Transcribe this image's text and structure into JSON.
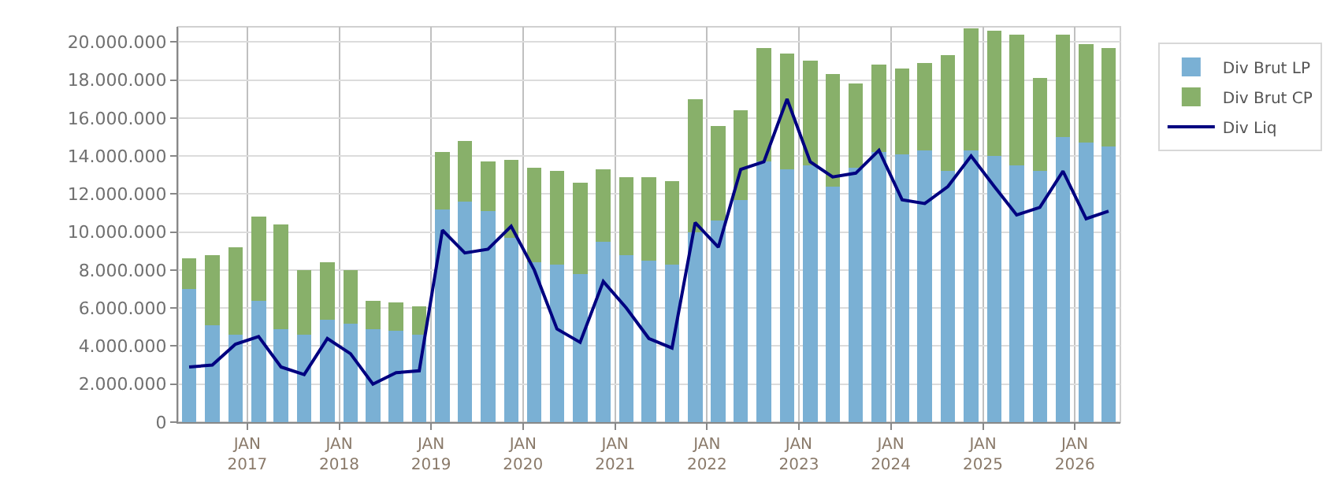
{
  "chart_data": {
    "type": "bar",
    "stacked": true,
    "x": [
      "2016-05-15",
      "2016-08-15",
      "2016-11-15",
      "2017-02-15",
      "2017-05-15",
      "2017-08-15",
      "2017-11-15",
      "2018-02-15",
      "2018-05-15",
      "2018-08-15",
      "2018-11-15",
      "2019-02-15",
      "2019-05-15",
      "2019-08-15",
      "2019-11-15",
      "2020-02-15",
      "2020-05-15",
      "2020-08-15",
      "2020-11-15",
      "2021-02-15",
      "2021-05-15",
      "2021-08-15",
      "2021-11-15",
      "2022-02-15",
      "2022-05-15",
      "2022-08-15",
      "2022-11-15",
      "2023-02-15",
      "2023-05-15",
      "2023-08-15",
      "2023-11-15",
      "2024-02-15",
      "2024-05-15",
      "2024-08-15",
      "2024-11-15",
      "2025-02-15",
      "2025-05-15",
      "2025-08-15",
      "2025-11-15",
      "2026-02-15",
      "2026-05-15"
    ],
    "series": [
      {
        "name": "Div Brut LP",
        "color": "#7ab0d4",
        "values": [
          7000000,
          5100000,
          4600000,
          6400000,
          4900000,
          4600000,
          5400000,
          5200000,
          4900000,
          4800000,
          4600000,
          11200000,
          11600000,
          11100000,
          9700000,
          8400000,
          8300000,
          7800000,
          9500000,
          8800000,
          8500000,
          8300000,
          10000000,
          10600000,
          11700000,
          13700000,
          13300000,
          13500000,
          12400000,
          13400000,
          14200000,
          14100000,
          14300000,
          13200000,
          14300000,
          14000000,
          13500000,
          13200000,
          15000000,
          14700000,
          14500000
        ]
      },
      {
        "name": "Div Brut CP",
        "color": "#88b06a",
        "values": [
          1600000,
          3700000,
          4600000,
          4400000,
          5500000,
          3400000,
          3000000,
          2800000,
          1500000,
          1500000,
          1500000,
          3000000,
          3200000,
          2600000,
          4100000,
          5000000,
          4900000,
          4800000,
          3800000,
          4100000,
          4400000,
          4400000,
          7000000,
          5000000,
          4700000,
          6000000,
          6100000,
          5500000,
          5900000,
          4400000,
          4600000,
          4500000,
          4600000,
          6100000,
          6400000,
          6600000,
          6900000,
          4900000,
          5400000,
          5200000,
          5200000
        ]
      },
      {
        "name": "Div Liq",
        "type": "line",
        "color": "#000080",
        "values": [
          2900000,
          3000000,
          4100000,
          4500000,
          2900000,
          2500000,
          4400000,
          3600000,
          2000000,
          2600000,
          2700000,
          10100000,
          8900000,
          9100000,
          10300000,
          8000000,
          4900000,
          4200000,
          7400000,
          6000000,
          4400000,
          3900000,
          10500000,
          9200000,
          13300000,
          13700000,
          17000000,
          13700000,
          12900000,
          13100000,
          14300000,
          11700000,
          11500000,
          12400000,
          14000000,
          12400000,
          10900000,
          11300000,
          13200000,
          10700000,
          11100000
        ]
      }
    ],
    "xlim": [
      "2016-04-01",
      "2026-07-01"
    ],
    "xticks": [
      {
        "value": "2017-01-01",
        "label": "JAN\n2017"
      },
      {
        "value": "2018-01-01",
        "label": "JAN\n2018"
      },
      {
        "value": "2019-01-01",
        "label": "JAN\n2019"
      },
      {
        "value": "2020-01-01",
        "label": "JAN\n2020"
      },
      {
        "value": "2021-01-01",
        "label": "JAN\n2021"
      },
      {
        "value": "2022-01-01",
        "label": "JAN\n2022"
      },
      {
        "value": "2023-01-01",
        "label": "JAN\n2023"
      },
      {
        "value": "2024-01-01",
        "label": "JAN\n2024"
      },
      {
        "value": "2025-01-01",
        "label": "JAN\n2025"
      },
      {
        "value": "2026-01-01",
        "label": "JAN\n2026"
      }
    ],
    "ylim": [
      0,
      20800000
    ],
    "yticks": [
      0,
      {
        "value": 2000000,
        "label": "2.000.000"
      },
      {
        "value": 4000000,
        "label": "4.000.000"
      },
      {
        "value": 6000000,
        "label": "6.000.000"
      },
      {
        "value": 8000000,
        "label": "8.000.000"
      },
      {
        "value": 10000000,
        "label": "10.000.000"
      },
      {
        "value": 12000000,
        "label": "12.000.000"
      },
      {
        "value": 14000000,
        "label": "14.000.000"
      },
      {
        "value": 16000000,
        "label": "16.000.000"
      },
      {
        "value": 18000000,
        "label": "18.000.000"
      },
      {
        "value": 20000000,
        "label": "20.000.000"
      }
    ],
    "grid": true,
    "legend": "top right",
    "line_style": "solid",
    "marker": "none"
  }
}
